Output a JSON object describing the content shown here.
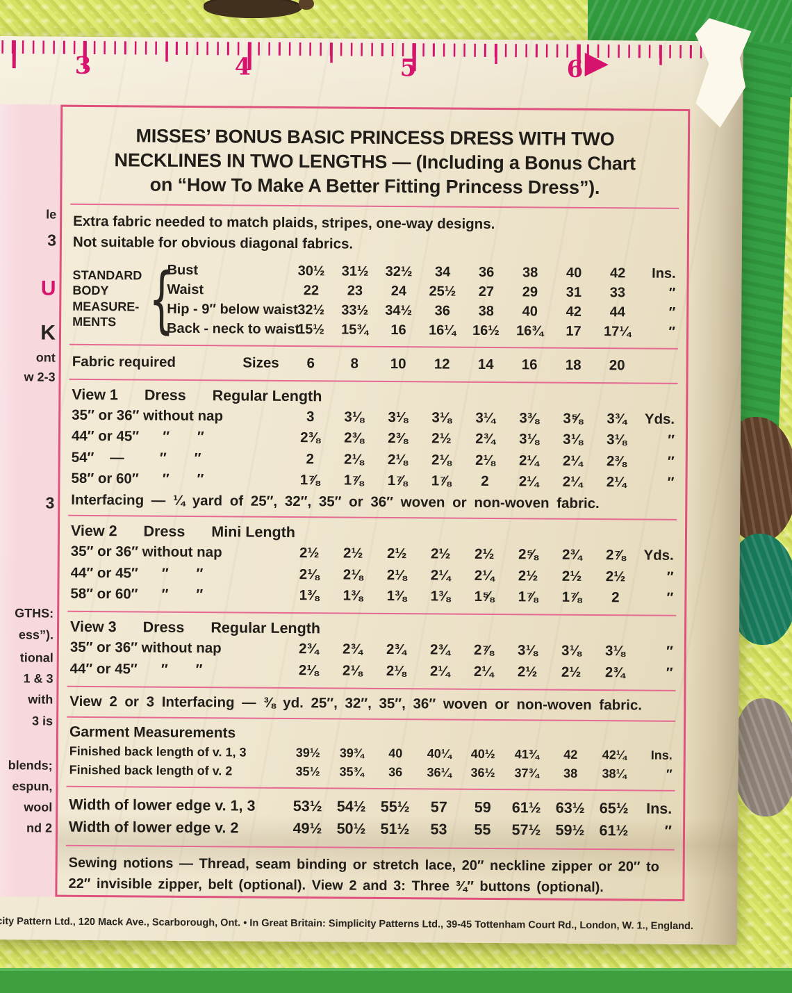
{
  "colors": {
    "accent_pink": "#d6146e",
    "border_pink": "#e0527e",
    "panel_pink": "#f7d8dd",
    "paper": "#efe6d0",
    "yarn_green": "#dbe76a",
    "patch_green": "#2f9b3c"
  },
  "ruler": {
    "numbers": [
      "3",
      "4",
      "5",
      "6"
    ]
  },
  "margin_fragments": [
    "le",
    "3",
    "U",
    "K",
    "ont",
    "w 2-3",
    "3",
    "GTHS:",
    "ess”).",
    "tional",
    "1 & 3",
    "with",
    "3 is",
    "blends;",
    "espun,",
    "wool",
    "nd 2"
  ],
  "title_lines": [
    "MISSES’ BONUS BASIC PRINCESS DRESS WITH TWO",
    "NECKLINES IN TWO LENGTHS — (Including a Bonus Chart",
    "on “How To Make A Better Fitting Princess Dress”)."
  ],
  "intro_lines": [
    "Extra fabric needed to match plaids, stripes, one-way designs.",
    "Not suitable for obvious diagonal fabrics."
  ],
  "body_measurements": {
    "label_lines": [
      "STANDARD",
      "BODY",
      "MEASURE-",
      "MENTS"
    ],
    "brace": "{",
    "rows": [
      {
        "name": "Bust",
        "values": [
          "30½",
          "31½",
          "32½",
          "34",
          "36",
          "38",
          "40",
          "42"
        ],
        "unit": "Ins."
      },
      {
        "name": "Waist",
        "values": [
          "22",
          "23",
          "24",
          "25½",
          "27",
          "29",
          "31",
          "33"
        ],
        "unit": "″"
      },
      {
        "name": "Hip - 9″ below waist",
        "values": [
          "32½",
          "33½",
          "34½",
          "36",
          "38",
          "40",
          "42",
          "44"
        ],
        "unit": "″"
      },
      {
        "name": "Back - neck to waist",
        "values": [
          "15½",
          "15¾",
          "16",
          "16¼",
          "16½",
          "16¾",
          "17",
          "17¼"
        ],
        "unit": "″"
      }
    ]
  },
  "fabric_required": {
    "label": "Fabric required",
    "sizes_label": "Sizes",
    "sizes": [
      "6",
      "8",
      "10",
      "12",
      "14",
      "16",
      "18",
      "20"
    ]
  },
  "view1": {
    "heading": [
      "View 1",
      "Dress",
      "Regular Length"
    ],
    "rows": [
      {
        "name": "35″ or 36″ without nap",
        "values": [
          "3",
          "3⅛",
          "3⅛",
          "3⅛",
          "3¼",
          "3⅜",
          "3⅝",
          "3¾"
        ],
        "unit": "Yds."
      },
      {
        "name": "44″ or 45″      ″       ″",
        "values": [
          "2⅜",
          "2⅜",
          "2⅜",
          "2½",
          "2¾",
          "3⅛",
          "3⅛",
          "3⅛"
        ],
        "unit": "″"
      },
      {
        "name": "54″    —         ″       ″",
        "values": [
          "2",
          "2⅛",
          "2⅛",
          "2⅛",
          "2⅛",
          "2¼",
          "2¼",
          "2⅜"
        ],
        "unit": "″"
      },
      {
        "name": "58″ or 60″      ″       ″",
        "values": [
          "1⅞",
          "1⅞",
          "1⅞",
          "1⅞",
          "2",
          "2¼",
          "2¼",
          "2¼"
        ],
        "unit": "″"
      }
    ],
    "interfacing": "Interfacing — ¼ yard of 25″, 32″, 35″ or 36″ woven or non-woven fabric."
  },
  "view2": {
    "heading": [
      "View 2",
      "Dress",
      "Mini Length"
    ],
    "rows": [
      {
        "name": "35″ or 36″ without nap",
        "values": [
          "2½",
          "2½",
          "2½",
          "2½",
          "2½",
          "2⅝",
          "2¾",
          "2⅞"
        ],
        "unit": "Yds."
      },
      {
        "name": "44″ or 45″      ″       ″",
        "values": [
          "2⅛",
          "2⅛",
          "2⅛",
          "2¼",
          "2¼",
          "2½",
          "2½",
          "2½"
        ],
        "unit": "″"
      },
      {
        "name": "58″ or 60″      ″       ″",
        "values": [
          "1⅜",
          "1⅜",
          "1⅜",
          "1⅜",
          "1⅝",
          "1⅞",
          "1⅞",
          "2"
        ],
        "unit": "″"
      }
    ]
  },
  "view3": {
    "heading": [
      "View 3",
      "Dress",
      "Regular Length"
    ],
    "rows": [
      {
        "name": "35″ or 36″ without nap",
        "values": [
          "2¾",
          "2¾",
          "2¾",
          "2¾",
          "2⅞",
          "3⅛",
          "3⅛",
          "3⅛"
        ],
        "unit": "″"
      },
      {
        "name": "44″ or 45″      ″       ″",
        "values": [
          "2⅛",
          "2⅛",
          "2⅛",
          "2¼",
          "2¼",
          "2½",
          "2½",
          "2¾"
        ],
        "unit": "″"
      }
    ]
  },
  "view23_interfacing": "View 2 or 3 Interfacing — ⅜ yd. 25″, 32″, 35″, 36″ woven or non-woven fabric.",
  "garment": {
    "heading": "Garment Measurements",
    "rows": [
      {
        "name": "Finished back length of v. 1, 3",
        "values": [
          "39½",
          "39¾",
          "40",
          "40¼",
          "40½",
          "41¾",
          "42",
          "42¼"
        ],
        "unit": "Ins."
      },
      {
        "name": "Finished back length of v. 2",
        "values": [
          "35½",
          "35¾",
          "36",
          "36¼",
          "36½",
          "37¾",
          "38",
          "38¼"
        ],
        "unit": "″"
      }
    ]
  },
  "width_lower": {
    "rows": [
      {
        "name": "Width of lower edge v. 1, 3",
        "values": [
          "53½",
          "54½",
          "55½",
          "57",
          "59",
          "61½",
          "63½",
          "65½"
        ],
        "unit": "Ins."
      },
      {
        "name": "Width of lower edge v. 2",
        "values": [
          "49½",
          "50½",
          "51½",
          "53",
          "55",
          "57½",
          "59½",
          "61½"
        ],
        "unit": "″"
      }
    ]
  },
  "sewing_notions": "Sewing notions — Thread, seam binding or stretch lace, 20″ neckline zipper or 20″ to 22″ invisible zipper, belt (optional). View 2 and 3: Three ¾″ buttons (optional).",
  "footer": "licity Pattern Ltd., 120 Mack Ave., Scarborough, Ont. • In Great Britain: Simplicity Patterns Ltd., 39-45 Tottenham Court Rd., London, W. 1., England."
}
